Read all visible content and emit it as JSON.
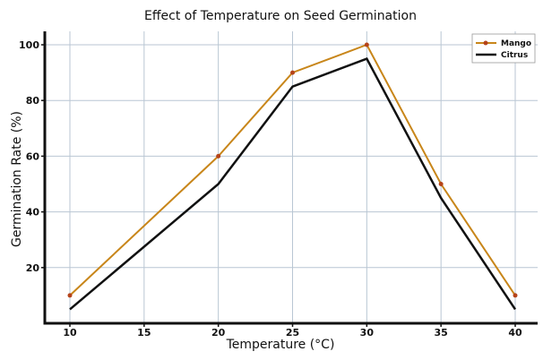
{
  "chart_data": {
    "type": "line",
    "title": "Effect of Temperature on Seed Germination",
    "xlabel": "Temperature (°C)",
    "ylabel": "Germination Rate (%)",
    "x": [
      10,
      20,
      25,
      30,
      35,
      40
    ],
    "x_ticks": [
      10,
      15,
      20,
      25,
      30,
      35,
      40
    ],
    "y_ticks": [
      20,
      40,
      60,
      80,
      100
    ],
    "xlim": [
      8.3,
      41.5
    ],
    "ylim": [
      0,
      104.5
    ],
    "grid": true,
    "legend_position": "top-right",
    "series": [
      {
        "name": "Mango",
        "values": [
          10,
          60,
          90,
          100,
          50,
          10
        ],
        "color": "#c8861a",
        "marker_color": "#b5431a",
        "marker": "dot"
      },
      {
        "name": "Citrus",
        "values": [
          5,
          50,
          85,
          95,
          45,
          5
        ],
        "color": "#111111",
        "marker": "none"
      }
    ]
  }
}
